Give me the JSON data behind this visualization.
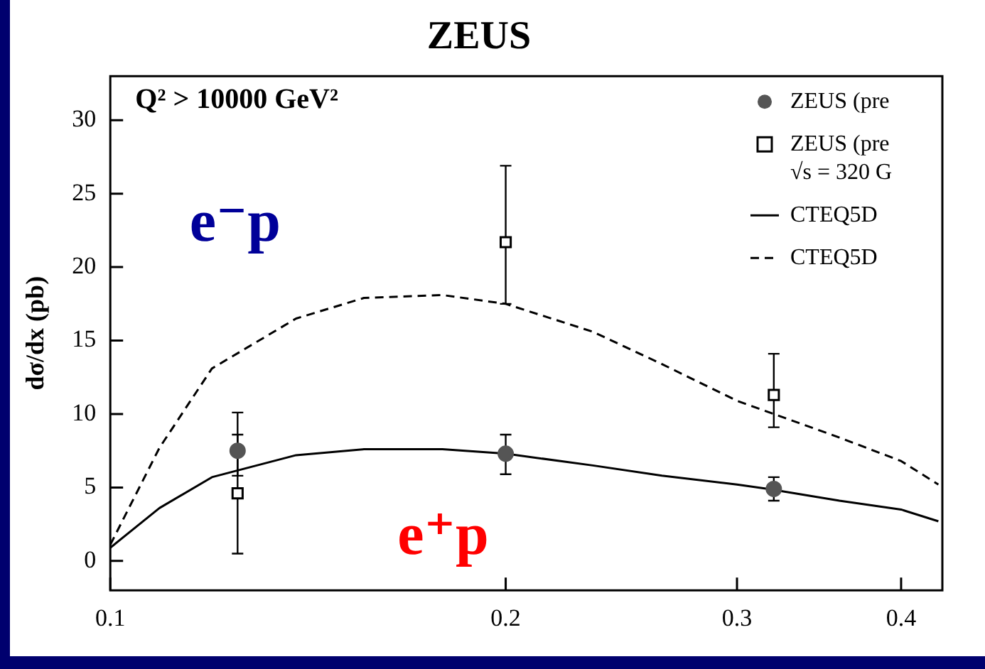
{
  "chart_data": {
    "type": "scatter",
    "title": "ZEUS",
    "ylabel": "dσ/dx (pb)",
    "log": "x",
    "xlim": [
      0.1,
      0.43
    ],
    "xticks": [
      0.1,
      0.2,
      0.3,
      0.4
    ],
    "ylim": [
      -2,
      33
    ],
    "yticks": [
      0,
      5,
      10,
      15,
      20,
      25,
      30
    ],
    "legend": "top right",
    "grid": false,
    "series": [
      {
        "name": "ZEUS (pre",
        "marker": "circle",
        "color": "#555555",
        "x": [
          0.125,
          0.2,
          0.32
        ],
        "values": [
          7.5,
          7.3,
          4.9
        ],
        "errors": [
          [
            5.8,
            10.1
          ],
          [
            5.9,
            8.6
          ],
          [
            4.1,
            5.7
          ]
        ]
      },
      {
        "name": "ZEUS (pre √s = 320 G",
        "marker": "square",
        "color": "#000000",
        "x": [
          0.125,
          0.2,
          0.32
        ],
        "values": [
          4.6,
          21.7,
          11.3
        ],
        "errors": [
          [
            0.5,
            8.6
          ],
          [
            17.5,
            26.9
          ],
          [
            9.1,
            14.1
          ]
        ]
      },
      {
        "name": "CTEQ5D",
        "type": "line",
        "line_style": "solid",
        "color": "#000000",
        "x": [
          0.1,
          0.109,
          0.1195,
          0.1385,
          0.156,
          0.179,
          0.2,
          0.233,
          0.263,
          0.3,
          0.317,
          0.359,
          0.4,
          0.427
        ],
        "values": [
          0.9,
          3.6,
          5.7,
          7.2,
          7.6,
          7.6,
          7.3,
          6.5,
          5.8,
          5.2,
          4.9,
          4.1,
          3.5,
          2.7
        ]
      },
      {
        "name": "CTEQ5D",
        "type": "line",
        "line_style": "dashed",
        "color": "#000000",
        "x": [
          0.1,
          0.109,
          0.1195,
          0.1385,
          0.156,
          0.179,
          0.2,
          0.233,
          0.263,
          0.3,
          0.359,
          0.4,
          0.427
        ],
        "values": [
          1.1,
          7.7,
          13.1,
          16.5,
          17.9,
          18.1,
          17.5,
          15.6,
          13.4,
          10.9,
          8.4,
          6.8,
          5.2
        ]
      }
    ],
    "annotations": [
      "Q² > 10000 GeV²",
      "e⁻p",
      "e⁺p"
    ]
  }
}
